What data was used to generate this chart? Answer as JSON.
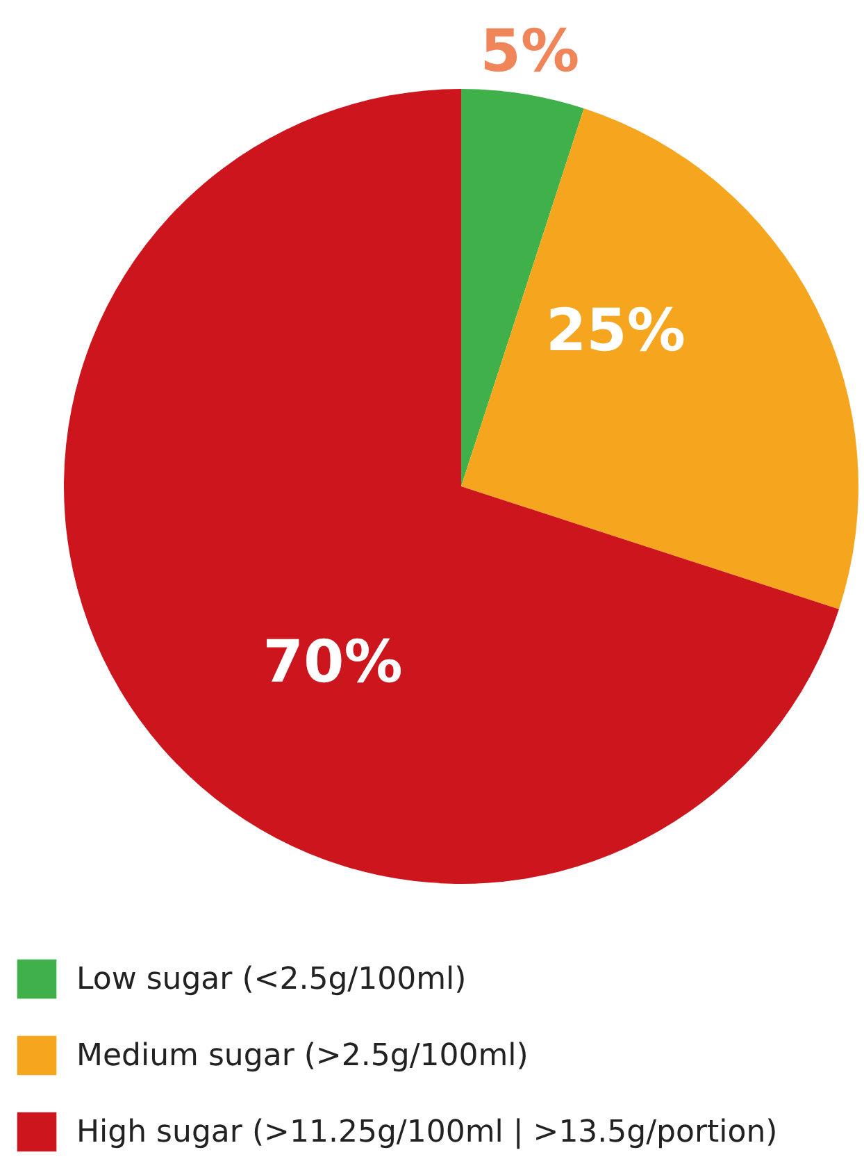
{
  "chart_data": {
    "type": "pie",
    "categories": [
      "Low sugar (<2.5g/100ml)",
      "Medium sugar (>2.5g/100ml)",
      "High sugar (>11.25g/100ml | >13.5g/portion)"
    ],
    "values": [
      5,
      25,
      70
    ],
    "colors": [
      "#40b04a",
      "#f6a51e",
      "#cc151c"
    ],
    "value_labels": [
      "5%",
      "25%",
      "70%"
    ],
    "legend": "bottom left"
  }
}
